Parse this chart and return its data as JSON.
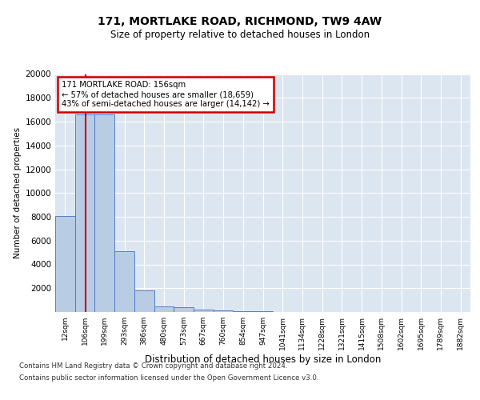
{
  "title": "171, MORTLAKE ROAD, RICHMOND, TW9 4AW",
  "subtitle": "Size of property relative to detached houses in London",
  "xlabel": "Distribution of detached houses by size in London",
  "ylabel": "Number of detached properties",
  "bar_color": "#b8cce4",
  "bar_edge_color": "#4472c4",
  "categories": [
    "12sqm",
    "106sqm",
    "199sqm",
    "293sqm",
    "386sqm",
    "480sqm",
    "573sqm",
    "667sqm",
    "760sqm",
    "854sqm",
    "947sqm",
    "1041sqm",
    "1134sqm",
    "1228sqm",
    "1321sqm",
    "1415sqm",
    "1508sqm",
    "1602sqm",
    "1695sqm",
    "1789sqm",
    "1882sqm"
  ],
  "values": [
    8050,
    16600,
    16600,
    5100,
    1800,
    500,
    380,
    210,
    160,
    100,
    60,
    0,
    0,
    0,
    0,
    0,
    0,
    0,
    0,
    0,
    0
  ],
  "annotation_line1": "171 MORTLAKE ROAD: 156sqm",
  "annotation_line2": "← 57% of detached houses are smaller (18,659)",
  "annotation_line3": "43% of semi-detached houses are larger (14,142) →",
  "ylim": [
    0,
    20000
  ],
  "yticks": [
    0,
    2000,
    4000,
    6000,
    8000,
    10000,
    12000,
    14000,
    16000,
    18000,
    20000
  ],
  "footer_line1": "Contains HM Land Registry data © Crown copyright and database right 2024.",
  "footer_line2": "Contains public sector information licensed under the Open Government Licence v3.0.",
  "background_color": "#ffffff",
  "plot_bg_color": "#dce6f0",
  "grid_color": "#ffffff",
  "annotation_box_color": "#ffffff",
  "annotation_box_edge": "#cc0000",
  "red_line_color": "#cc0000"
}
